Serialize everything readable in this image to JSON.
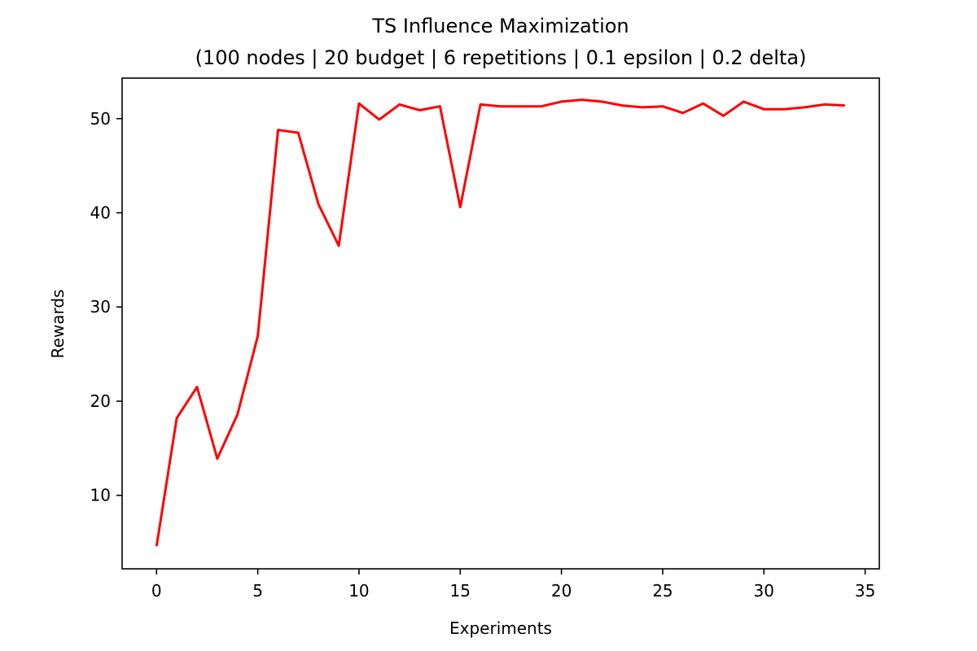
{
  "chart_data": {
    "type": "line",
    "title": "TS Influence Maximization",
    "subtitle": "(100 nodes | 20 budget | 6 repetitions | 0.1 epsilon | 0.2 delta)",
    "xlabel": "Experiments",
    "ylabel": "Rewards",
    "xlim": [
      -1.7,
      35.7
    ],
    "ylim": [
      2.2,
      54.3
    ],
    "xticks": [
      0,
      5,
      10,
      15,
      20,
      25,
      30,
      35
    ],
    "yticks": [
      10,
      20,
      30,
      40,
      50
    ],
    "grid": false,
    "line_color": "#ff0000",
    "x": [
      0,
      1,
      2,
      3,
      4,
      5,
      6,
      7,
      8,
      9,
      10,
      11,
      12,
      13,
      14,
      15,
      16,
      17,
      18,
      19,
      20,
      21,
      22,
      23,
      24,
      25,
      26,
      27,
      28,
      29,
      30,
      31,
      32,
      33,
      34
    ],
    "y": [
      4.6,
      18.2,
      21.5,
      13.9,
      18.6,
      26.9,
      48.8,
      48.5,
      40.9,
      36.5,
      51.6,
      49.9,
      51.5,
      50.9,
      51.3,
      40.6,
      51.5,
      51.3,
      51.3,
      51.3,
      51.8,
      52.0,
      51.8,
      51.4,
      51.2,
      51.3,
      50.6,
      51.6,
      50.3,
      51.8,
      51.0,
      51.0,
      51.2,
      51.5,
      51.4
    ]
  }
}
